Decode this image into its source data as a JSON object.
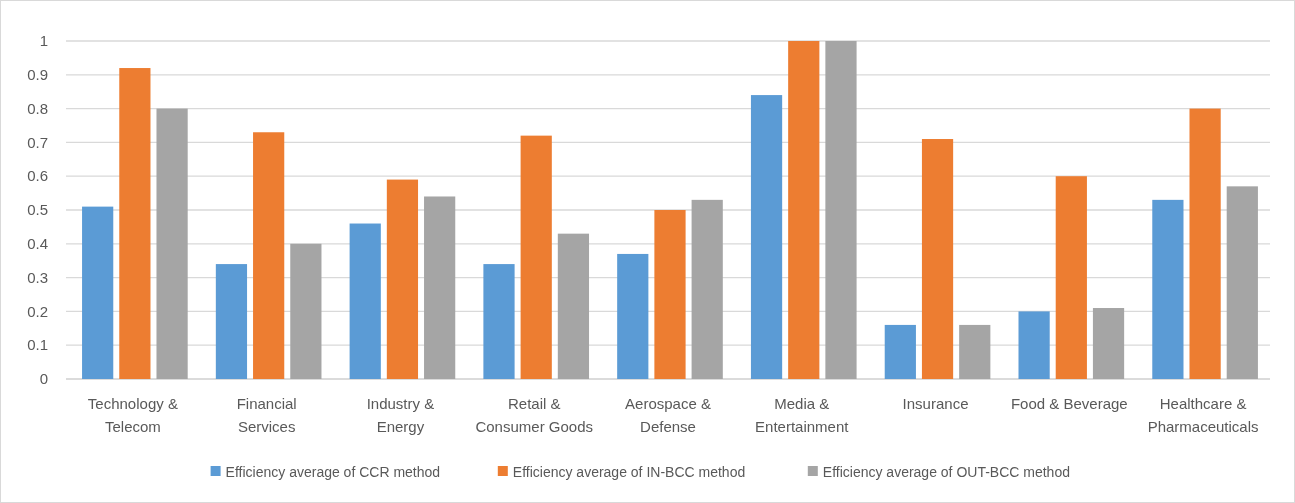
{
  "chart_data": {
    "type": "bar",
    "categories": [
      "Technology & Telecom",
      "Financial Services",
      "Industry & Energy",
      "Retail & Consumer Goods",
      "Aerospace & Defense",
      "Media & Entertainment",
      "Insurance",
      "Food & Beverage",
      "Healthcare & Pharmaceuticals"
    ],
    "series": [
      {
        "name": "Efficiency average of CCR method",
        "color": "#5b9bd5",
        "values": [
          0.51,
          0.34,
          0.46,
          0.34,
          0.37,
          0.84,
          0.16,
          0.2,
          0.53
        ]
      },
      {
        "name": "Efficiency average of IN-BCC method",
        "color": "#ed7d31",
        "values": [
          0.92,
          0.73,
          0.59,
          0.72,
          0.5,
          1,
          0.71,
          0.6,
          0.8
        ]
      },
      {
        "name": "Efficiency average of OUT-BCC method",
        "color": "#a5a5a5",
        "values": [
          0.8,
          0.4,
          0.54,
          0.43,
          0.53,
          1,
          0.16,
          0.21,
          0.57
        ]
      }
    ],
    "ylim": [
      0,
      1
    ],
    "yticks": [
      0,
      0.1,
      0.2,
      0.3,
      0.4,
      0.5,
      0.6,
      0.7,
      0.8,
      0.9,
      1
    ],
    "grid": "y",
    "legend": "bottom"
  }
}
